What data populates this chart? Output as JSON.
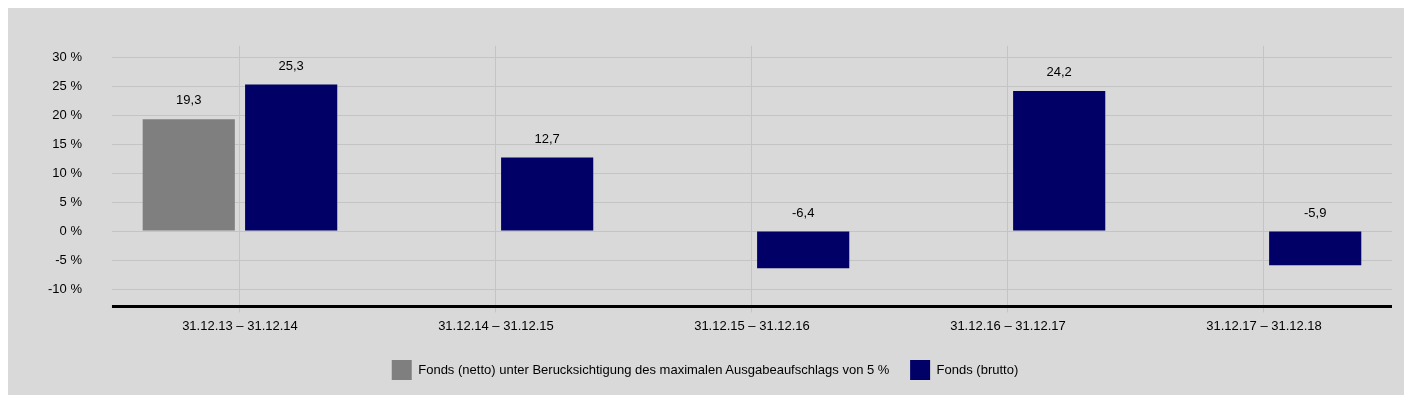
{
  "chart_data": {
    "type": "bar",
    "categories": [
      "31.12.13 – 31.12.14",
      "31.12.14 – 31.12.15",
      "31.12.15 – 31.12.16",
      "31.12.16 – 31.12.17",
      "31.12.17 – 31.12.18"
    ],
    "series": [
      {
        "name": "Fonds (netto) unter Berucksichtigung des maximalen Ausgabeaufschlags von 5 %",
        "color": "#7f7f7f",
        "values": [
          19.3,
          null,
          null,
          null,
          null
        ],
        "value_labels": [
          "19,3",
          null,
          null,
          null,
          null
        ]
      },
      {
        "name": "Fonds (brutto)",
        "color": "#000066",
        "values": [
          25.3,
          12.7,
          -6.4,
          24.2,
          -5.9
        ],
        "value_labels": [
          "25,3",
          "12,7",
          "-6,4",
          "24,2",
          "-5,9"
        ]
      }
    ],
    "ylim": [
      -13,
      32
    ],
    "yticks": [
      {
        "value": -10,
        "label": "-10 %"
      },
      {
        "value": -5,
        "label": "-5 %"
      },
      {
        "value": 0,
        "label": "0 %"
      },
      {
        "value": 5,
        "label": "5 %"
      },
      {
        "value": 10,
        "label": "10 %"
      },
      {
        "value": 15,
        "label": "15 %"
      },
      {
        "value": 20,
        "label": "20 %"
      },
      {
        "value": 25,
        "label": "25 %"
      },
      {
        "value": 30,
        "label": "30 %"
      }
    ],
    "grid": true,
    "legend": "bottom"
  }
}
